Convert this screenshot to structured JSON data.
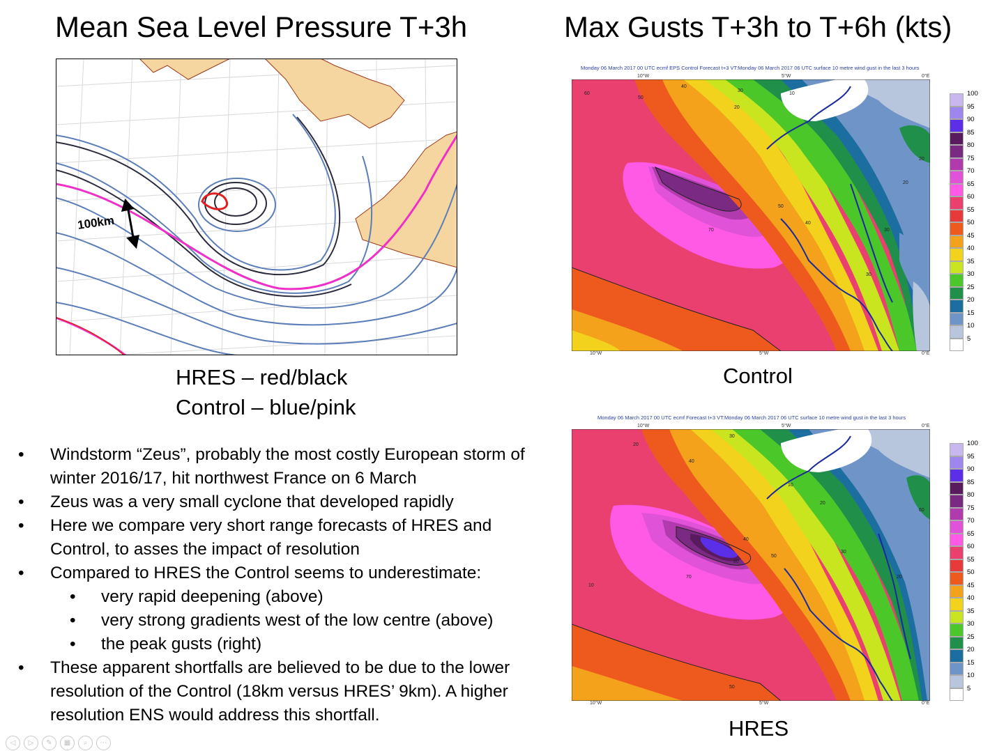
{
  "left_title": "Mean Sea Level Pressure T+3h",
  "right_title": "Max Gusts T+3h to T+6h (kts)",
  "mslp_map": {
    "scale_label": "100km",
    "legend_line1": "HRES – red/black",
    "legend_line2": "Control – blue/pink"
  },
  "control_map": {
    "header": "Monday 06 March 2017 00 UTC ecmf EPS Control Forecast t+3 VT:Monday 06 March 2017 06 UTC surface  10 metre wind gust in the last 3 hours",
    "caption": "Control",
    "top_ticks": [
      "10°W",
      "5°W",
      "0°E"
    ],
    "bottom_ticks": [
      "10°W",
      "5°W",
      "0°E"
    ],
    "contour_labels": [
      "60",
      "50",
      "40",
      "30",
      "20",
      "10",
      "70",
      "50",
      "20",
      "30",
      "20",
      "40",
      "30"
    ]
  },
  "hres_map": {
    "header": "Monday 06 March 2017 00 UTC ecmf Forecast t+3 VT:Monday 06 March 2017 06 UTC surface  10 metre wind gust in the last 3 hours",
    "caption": "HRES",
    "top_ticks": [
      "10°W",
      "5°W",
      "0°E"
    ],
    "bottom_ticks": [
      "10°W",
      "5°W",
      "0°E"
    ],
    "contour_labels": [
      "20",
      "30",
      "40",
      "10",
      "20",
      "70",
      "80",
      "50",
      "40",
      "30",
      "20",
      "10",
      "60",
      "50"
    ]
  },
  "legend": {
    "labels": [
      "100",
      "95",
      "90",
      "85",
      "80",
      "75",
      "70",
      "65",
      "60",
      "55",
      "50",
      "45",
      "40",
      "35",
      "30",
      "25",
      "20",
      "15",
      "10",
      "5"
    ],
    "colors": [
      "#c9b8f0",
      "#9d86ee",
      "#5b2fe8",
      "#5a1a5e",
      "#7b2a84",
      "#b03aae",
      "#e052d8",
      "#ff5ae6",
      "#e94070",
      "#e83a3a",
      "#ee5a1e",
      "#f4a11b",
      "#f2d21c",
      "#c8e51f",
      "#4cc72a",
      "#1f8f4a",
      "#1c6ea0",
      "#6f95c8",
      "#b7c6dd",
      "#ffffff"
    ]
  },
  "bullets": [
    {
      "level": 1,
      "text": "Windstorm “Zeus”, probably the most costly European storm of winter 2016/17, hit northwest France on 6 March"
    },
    {
      "level": 1,
      "text": "Zeus was a very small cyclone that developed rapidly"
    },
    {
      "level": 1,
      "text": "Here we compare very short range forecasts of HRES and Control, to asses the impact of resolution"
    },
    {
      "level": 1,
      "text": "Compared to HRES the Control seems to underestimate:"
    },
    {
      "level": 2,
      "text": "very rapid deepening (above)"
    },
    {
      "level": 2,
      "text": "very strong gradients west of the low centre (above)"
    },
    {
      "level": 2,
      "text": "the peak gusts (right)"
    },
    {
      "level": 1,
      "text": "These apparent shortfalls are believed to be due to the lower resolution of the Control (18km versus HRES’ 9km). A higher resolution ENS would address this shortfall."
    }
  ],
  "toolbar_icons": [
    "back-icon",
    "forward-icon",
    "pen-icon",
    "slides-icon",
    "zoom-icon",
    "more-icon"
  ]
}
